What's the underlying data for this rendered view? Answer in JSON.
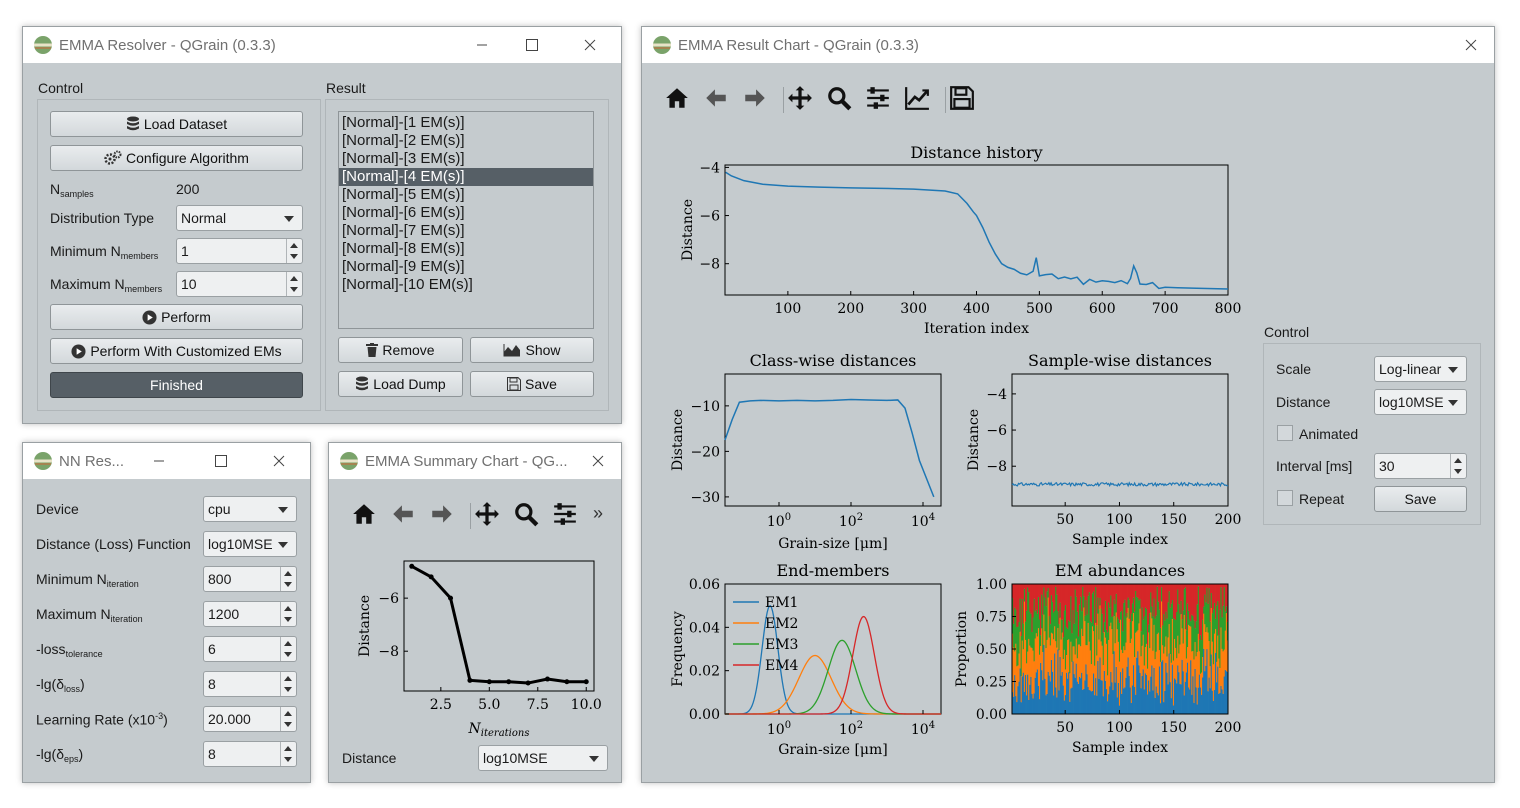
{
  "resolver": {
    "title": "EMMA Resolver - QGrain (0.3.3)",
    "control_label": "Control",
    "result_label": "Result",
    "load_dataset": "Load Dataset",
    "configure_algorithm": "Configure Algorithm",
    "n_samples_label": "N",
    "n_samples_sub": "samples",
    "n_samples_value": "200",
    "distribution_type_label": "Distribution Type",
    "distribution_type_value": "Normal",
    "min_members_label": "Minimum N",
    "min_members_sub": "members",
    "min_members_value": "1",
    "max_members_label": "Maximum N",
    "max_members_sub": "members",
    "max_members_value": "10",
    "perform": "Perform",
    "perform_custom": "Perform With Customized EMs",
    "status": "Finished",
    "results": [
      "[Normal]-[1 EM(s)]",
      "[Normal]-[2 EM(s)]",
      "[Normal]-[3 EM(s)]",
      "[Normal]-[4 EM(s)]",
      "[Normal]-[5 EM(s)]",
      "[Normal]-[6 EM(s)]",
      "[Normal]-[7 EM(s)]",
      "[Normal]-[8 EM(s)]",
      "[Normal]-[9 EM(s)]",
      "[Normal]-[10 EM(s)]"
    ],
    "selected_index": 3,
    "remove": "Remove",
    "show": "Show",
    "load_dump": "Load Dump",
    "save": "Save"
  },
  "nn": {
    "title": "NN Res...",
    "device_label": "Device",
    "device_value": "cpu",
    "distance_label": "Distance (Loss) Function",
    "distance_value": "log10MSE",
    "min_iter_label": "Minimum N",
    "min_iter_sub": "iteration",
    "min_iter_value": "800",
    "max_iter_label": "Maximum N",
    "max_iter_sub": "iteration",
    "max_iter_value": "1200",
    "loss_tol_label": "-loss",
    "loss_tol_sub": "tolerance",
    "loss_tol_value": "6",
    "lg_loss_label": "-lg(δ",
    "lg_loss_sub": "loss",
    "lg_loss_value": "8",
    "lr_label": "Learning Rate (x10",
    "lr_sup": "-3",
    "lr_value": "20.000",
    "lg_eps_label": "-lg(δ",
    "lg_eps_sub": "eps",
    "lg_eps_value": "8"
  },
  "summary": {
    "title": "EMMA Summary Chart - QG...",
    "distance_label": "Distance",
    "distance_value": "log10MSE",
    "more": "»"
  },
  "result_chart": {
    "title": "EMMA Result Chart - QGrain (0.3.3)",
    "control_label": "Control",
    "scale_label": "Scale",
    "scale_value": "Log-linear",
    "distance_label": "Distance",
    "distance_value": "log10MSE",
    "animated_label": "Animated",
    "interval_label": "Interval [ms]",
    "interval_value": "30",
    "repeat_label": "Repeat",
    "save": "Save"
  },
  "icons": {
    "home": "home-icon",
    "back": "back-arrow-icon",
    "forward": "forward-arrow-icon",
    "pan": "pan-icon",
    "zoom": "zoom-icon",
    "config": "sliders-icon",
    "edit": "edit-axis-icon",
    "save": "floppy-save-icon"
  },
  "colors": {
    "em1": "#1f77b4",
    "em2": "#ff7f0e",
    "em3": "#2ca02c",
    "em4": "#d62728",
    "window_bg": "#c5cbce",
    "selected": "#565f66"
  },
  "chart_data": [
    {
      "id": "summary",
      "type": "line",
      "title": "",
      "xlabel": "N_iterations",
      "ylabel": "Distance",
      "x": [
        1,
        2,
        3,
        4,
        5,
        6,
        7,
        8,
        9,
        10
      ],
      "y": [
        -4.8,
        -5.2,
        -6.0,
        -9.1,
        -9.15,
        -9.15,
        -9.2,
        -9.05,
        -9.15,
        -9.15
      ],
      "xticks": [
        "2.5",
        "5.0",
        "7.5",
        "10.0"
      ],
      "yticks": [
        "-6",
        "-8"
      ],
      "xlim": [
        0.6,
        10.4
      ],
      "ylim": [
        -9.5,
        -4.6
      ]
    },
    {
      "id": "distance_history",
      "type": "line",
      "title": "Distance history",
      "xlabel": "Iteration index",
      "ylabel": "Distance",
      "x": [
        1,
        10,
        30,
        60,
        100,
        150,
        200,
        250,
        300,
        350,
        370,
        385,
        395,
        400,
        410,
        420,
        430,
        440,
        450,
        460,
        470,
        480,
        490,
        495,
        500,
        510,
        520,
        530,
        540,
        550,
        560,
        570,
        580,
        590,
        600,
        610,
        620,
        630,
        640,
        645,
        650,
        655,
        660,
        670,
        680,
        690,
        700,
        720,
        750,
        800
      ],
      "y": [
        -4.2,
        -4.35,
        -4.55,
        -4.7,
        -4.78,
        -4.82,
        -4.85,
        -4.87,
        -4.9,
        -4.98,
        -5.1,
        -5.5,
        -5.85,
        -6.0,
        -6.5,
        -7.1,
        -7.6,
        -8.0,
        -8.15,
        -8.25,
        -8.3,
        -8.4,
        -8.3,
        -7.75,
        -8.4,
        -8.55,
        -8.45,
        -8.6,
        -8.5,
        -8.7,
        -8.6,
        -8.75,
        -8.65,
        -8.7,
        -8.75,
        -8.65,
        -8.8,
        -8.7,
        -8.75,
        -8.5,
        -8.2,
        -8.5,
        -8.75,
        -8.85,
        -8.9,
        -8.95,
        -8.98,
        -9.0,
        -9.02,
        -9.05
      ],
      "xticks": [
        "100",
        "200",
        "300",
        "400",
        "500",
        "600",
        "700",
        "800"
      ],
      "yticks": [
        "-4",
        "-6",
        "-8"
      ],
      "xlim": [
        0,
        800
      ],
      "ylim": [
        -9.3,
        -3.9
      ]
    },
    {
      "id": "class_wise",
      "type": "line",
      "title": "Class-wise distances",
      "xlabel": "Grain-size [μm]",
      "ylabel": "Distance",
      "x_log": [
        -1.5,
        -1.3,
        -1.1,
        -0.8,
        -0.5,
        0,
        0.5,
        1,
        1.5,
        2,
        2.5,
        3,
        3.3,
        3.5,
        3.7,
        3.9,
        4.3
      ],
      "y": [
        -17.5,
        -13,
        -9.2,
        -8.9,
        -8.8,
        -8.9,
        -8.8,
        -8.9,
        -8.8,
        -8.6,
        -8.7,
        -8.8,
        -8.7,
        -10.5,
        -16,
        -22,
        -30
      ],
      "xticks": [
        "10^0",
        "10^2",
        "10^4"
      ],
      "yticks": [
        "-10",
        "-20",
        "-30"
      ],
      "xlim_log": [
        -1.5,
        4.5
      ],
      "ylim": [
        -32,
        -3
      ]
    },
    {
      "id": "sample_wise",
      "type": "line",
      "title": "Sample-wise distances",
      "xlabel": "Sample index",
      "ylabel": "Distance",
      "mean": -9.0,
      "n": 200,
      "xticks": [
        "50",
        "100",
        "150",
        "200"
      ],
      "yticks": [
        "-4",
        "-6",
        "-8"
      ],
      "xlim": [
        1,
        200
      ],
      "ylim": [
        -10.2,
        -2.9
      ]
    },
    {
      "id": "end_members",
      "type": "line",
      "title": "End-members",
      "xlabel": "Grain-size [μm]",
      "ylabel": "Frequency",
      "series": [
        {
          "name": "EM1",
          "center_log": -0.25,
          "sigma_log": 0.22,
          "peak": 0.05
        },
        {
          "name": "EM2",
          "center_log": 1.0,
          "sigma_log": 0.45,
          "peak": 0.027
        },
        {
          "name": "EM3",
          "center_log": 1.75,
          "sigma_log": 0.38,
          "peak": 0.034
        },
        {
          "name": "EM4",
          "center_log": 2.35,
          "sigma_log": 0.3,
          "peak": 0.045
        }
      ],
      "xticks": [
        "10^0",
        "10^2",
        "10^4"
      ],
      "yticks": [
        "0.00",
        "0.02",
        "0.04",
        "0.06"
      ],
      "xlim_log": [
        -1.5,
        4.5
      ],
      "ylim": [
        0,
        0.06
      ]
    },
    {
      "id": "em_abundances",
      "type": "area",
      "title": "EM abundances",
      "xlabel": "Sample index",
      "ylabel": "Proportion",
      "series_names": [
        "EM1",
        "EM2",
        "EM3",
        "EM4"
      ],
      "mean_proportions": [
        0.27,
        0.3,
        0.23,
        0.2
      ],
      "n": 200,
      "xticks": [
        "50",
        "100",
        "150",
        "200"
      ],
      "yticks": [
        "0.00",
        "0.25",
        "0.50",
        "0.75",
        "1.00"
      ],
      "xlim": [
        1,
        200
      ],
      "ylim": [
        0,
        1
      ]
    }
  ]
}
